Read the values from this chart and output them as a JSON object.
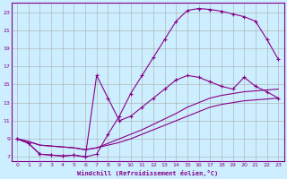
{
  "xlabel": "Windchill (Refroidissement éolien,°C)",
  "bg_color": "#cceeff",
  "line_color": "#880088",
  "grid_color": "#aaaaaa",
  "xlim": [
    -0.5,
    23.5
  ],
  "ylim": [
    6.5,
    24.0
  ],
  "xticks": [
    0,
    1,
    2,
    3,
    4,
    5,
    6,
    7,
    8,
    9,
    10,
    11,
    12,
    13,
    14,
    15,
    16,
    17,
    18,
    19,
    20,
    21,
    22,
    23
  ],
  "yticks": [
    7,
    9,
    11,
    13,
    15,
    17,
    19,
    21,
    23
  ],
  "line1_x": [
    0,
    1,
    2,
    3,
    4,
    5,
    6,
    7,
    8,
    9,
    10,
    11,
    12,
    13,
    14,
    15,
    16,
    17,
    18,
    19,
    20,
    21,
    22,
    23
  ],
  "line1_y": [
    9.0,
    8.5,
    7.3,
    7.2,
    7.1,
    7.2,
    7.0,
    7.3,
    9.5,
    11.5,
    14.0,
    16.0,
    18.0,
    20.0,
    22.0,
    23.2,
    23.4,
    23.3,
    23.1,
    22.8,
    22.5,
    22.0,
    20.0,
    17.8
  ],
  "line2_x": [
    0,
    1,
    2,
    3,
    4,
    5,
    6,
    7,
    8,
    9,
    10,
    11,
    12,
    13,
    14,
    15,
    16,
    17,
    18,
    19,
    20,
    21,
    22,
    23
  ],
  "line2_y": [
    9.0,
    8.5,
    7.3,
    7.2,
    7.1,
    7.2,
    7.0,
    16.0,
    13.5,
    11.0,
    11.5,
    12.5,
    13.5,
    14.5,
    15.5,
    16.0,
    15.8,
    15.3,
    14.8,
    14.5,
    15.8,
    14.8,
    14.2,
    13.5
  ],
  "line3_x": [
    0,
    1,
    2,
    3,
    4,
    5,
    6,
    7,
    8,
    9,
    10,
    11,
    12,
    13,
    14,
    15,
    16,
    17,
    18,
    19,
    20,
    21,
    22,
    23
  ],
  "line3_y": [
    9.0,
    8.7,
    8.3,
    8.2,
    8.1,
    8.0,
    7.8,
    8.0,
    8.5,
    9.0,
    9.5,
    10.0,
    10.6,
    11.2,
    11.8,
    12.5,
    13.0,
    13.5,
    13.8,
    14.0,
    14.2,
    14.3,
    14.4,
    14.5
  ],
  "line4_x": [
    0,
    1,
    2,
    3,
    4,
    5,
    6,
    7,
    8,
    9,
    10,
    11,
    12,
    13,
    14,
    15,
    16,
    17,
    18,
    19,
    20,
    21,
    22,
    23
  ],
  "line4_y": [
    9.0,
    8.7,
    8.3,
    8.2,
    8.1,
    8.0,
    7.8,
    8.0,
    8.3,
    8.6,
    9.0,
    9.5,
    10.0,
    10.5,
    11.0,
    11.5,
    12.0,
    12.5,
    12.8,
    13.0,
    13.2,
    13.3,
    13.4,
    13.5
  ]
}
